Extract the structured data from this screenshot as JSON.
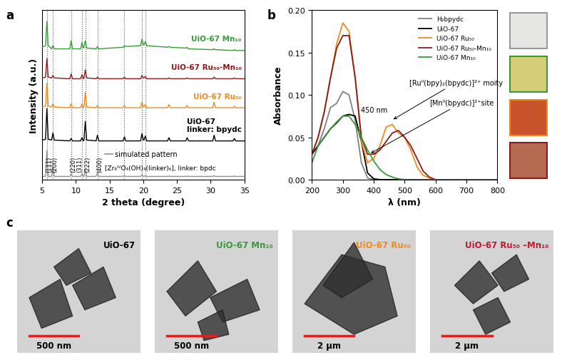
{
  "chart_data": [
    {
      "type": "line",
      "panel_label": "a",
      "x_label": "2 theta (degree)",
      "y_label": "Intensity (a.u.)",
      "xlim": [
        5,
        35
      ],
      "xticks": [
        5,
        10,
        15,
        20,
        25,
        30,
        35
      ],
      "ylim": [
        0,
        10.5
      ],
      "tick_labels": "x",
      "x": [
        5.0,
        5.5,
        5.7,
        5.9,
        6.4,
        6.6,
        6.8,
        9.1,
        9.3,
        9.5,
        10.7,
        10.9,
        11.1,
        11.2,
        11.4,
        11.6,
        13.0,
        13.2,
        13.4,
        17.0,
        17.2,
        17.4,
        19.6,
        19.8,
        20.0,
        20.1,
        20.3,
        20.5,
        23.6,
        23.8,
        24.0,
        26.3,
        26.5,
        26.7,
        30.3,
        30.5,
        30.7,
        33.3,
        33.5,
        33.7,
        35.0
      ],
      "series": [
        {
          "name": "UiO-67 Mn₁₀",
          "color": "#3a9a3a",
          "values": [
            8.2,
            8.3,
            9.8,
            8.3,
            8.1,
            8.3,
            8.1,
            8.1,
            8.6,
            8.1,
            8.1,
            8.5,
            8.15,
            8.2,
            8.6,
            8.15,
            8.1,
            8.25,
            8.1,
            8.2,
            8.3,
            8.25,
            8.3,
            8.7,
            8.35,
            8.35,
            8.55,
            8.3,
            8.2,
            8.25,
            8.2,
            8.15,
            8.2,
            8.1,
            8.05,
            8.1,
            8.05,
            8.0,
            8.05,
            8.0,
            8.0
          ]
        },
        {
          "name": "UiO-67 Ru₅₀-Mn₁₀",
          "color": "#8b1a1a",
          "values": [
            6.3,
            6.35,
            7.5,
            6.35,
            6.3,
            6.45,
            6.3,
            6.25,
            6.55,
            6.25,
            6.25,
            6.5,
            6.25,
            6.3,
            6.8,
            6.3,
            6.25,
            6.35,
            6.25,
            6.25,
            6.35,
            6.25,
            6.25,
            6.45,
            6.3,
            6.3,
            6.4,
            6.25,
            6.25,
            6.3,
            6.25,
            6.25,
            6.3,
            6.25,
            6.25,
            6.35,
            6.25,
            6.25,
            6.3,
            6.25,
            6.25
          ]
        },
        {
          "name": "UiO-67 Ru₅₀",
          "color": "#f08a1c",
          "values": [
            4.5,
            4.55,
            6.0,
            4.55,
            4.5,
            4.7,
            4.5,
            4.45,
            4.7,
            4.45,
            4.45,
            4.7,
            4.45,
            4.5,
            5.4,
            4.5,
            4.45,
            4.6,
            4.45,
            4.45,
            4.6,
            4.45,
            4.45,
            4.8,
            4.5,
            4.5,
            4.65,
            4.45,
            4.45,
            4.65,
            4.45,
            4.45,
            4.6,
            4.45,
            4.45,
            4.8,
            4.45,
            4.45,
            4.55,
            4.45,
            4.45
          ]
        },
        {
          "name": "UiO-67\nlinker: bpydc",
          "color": "#000000",
          "values": [
            2.45,
            2.5,
            4.4,
            2.5,
            2.45,
            2.9,
            2.45,
            2.4,
            2.55,
            2.4,
            2.4,
            2.6,
            2.4,
            2.45,
            3.6,
            2.45,
            2.4,
            2.75,
            2.4,
            2.4,
            2.65,
            2.4,
            2.4,
            2.85,
            2.45,
            2.45,
            2.7,
            2.4,
            2.4,
            2.6,
            2.4,
            2.4,
            2.6,
            2.4,
            2.4,
            2.75,
            2.4,
            2.4,
            2.55,
            2.4,
            2.4
          ]
        }
      ],
      "reference_pattern": {
        "name": "simulated pattern",
        "color": "#909090",
        "composition": "[Zr₆ᴵⱽO₄(OH)₄(linker)₆], linker: bpdc",
        "values": [
          0.2,
          0.2,
          1.8,
          0.2,
          0.2,
          0.8,
          0.2,
          0.2,
          0.35,
          0.2,
          0.2,
          0.35,
          0.2,
          0.2,
          0.6,
          0.2,
          0.2,
          0.4,
          0.2,
          0.2,
          0.25,
          0.2,
          0.2,
          0.3,
          0.2,
          0.2,
          0.25,
          0.2,
          0.2,
          0.22,
          0.2,
          0.2,
          0.22,
          0.2,
          0.2,
          0.25,
          0.2,
          0.2,
          0.22,
          0.2,
          0.2
        ]
      },
      "peak_labels": [
        {
          "label": "(111)",
          "x": 5.7
        },
        {
          "label": "(200)",
          "x": 6.6
        },
        {
          "label": "(220)",
          "x": 9.3
        },
        {
          "label": "(311)",
          "x": 10.9
        },
        {
          "label": "(222)",
          "x": 11.4
        },
        {
          "label": "(400)",
          "x": 13.2
        }
      ],
      "reference_lines": [
        5.7,
        6.6,
        9.3,
        10.9,
        11.4,
        13.2,
        17.2,
        19.8,
        20.3
      ]
    },
    {
      "type": "line",
      "panel_label": "b",
      "x_label": "λ (nm)",
      "y_label": "Absorbance",
      "xlim": [
        200,
        800
      ],
      "xticks": [
        200,
        300,
        400,
        500,
        600,
        700,
        800
      ],
      "ylim": [
        0,
        0.2
      ],
      "yticks": [
        {
          "value": 0,
          "label": "0.00"
        },
        {
          "value": 0.05,
          "label": "0.05"
        },
        {
          "value": 0.1,
          "label": "0.10"
        },
        {
          "value": 0.15,
          "label": "0.15"
        },
        {
          "value": 0.2,
          "label": "0.20"
        }
      ],
      "legend": "upper right",
      "x": [
        200,
        220,
        240,
        260,
        280,
        300,
        320,
        340,
        360,
        380,
        400,
        420,
        440,
        460,
        480,
        500,
        520,
        540,
        560,
        580,
        600,
        620,
        640,
        660,
        680,
        700,
        720,
        740,
        760,
        780,
        800
      ],
      "series": [
        {
          "name": "H₂bpydc",
          "color": "#808080",
          "values": [
            0.03,
            0.04,
            0.06,
            0.085,
            0.09,
            0.104,
            0.1,
            0.07,
            0.02,
            0.002,
            0,
            0,
            0,
            0,
            0,
            0,
            0,
            0,
            0,
            0,
            0,
            0,
            0,
            0,
            0,
            0,
            0,
            0,
            0,
            0,
            0
          ]
        },
        {
          "name": "UiO-67",
          "color": "#000000",
          "values": [
            0.03,
            0.04,
            0.05,
            0.06,
            0.067,
            0.075,
            0.077,
            0.075,
            0.045,
            0.008,
            0.001,
            0,
            0,
            0,
            0,
            0,
            0,
            0,
            0,
            0,
            0,
            0,
            0,
            0,
            0,
            0,
            0,
            0,
            0,
            0,
            0
          ]
        },
        {
          "name": "UiO-67 Ru₅₀",
          "color": "#f08a1c",
          "values": [
            0.03,
            0.05,
            0.08,
            0.12,
            0.16,
            0.185,
            0.175,
            0.12,
            0.045,
            0.02,
            0.025,
            0.04,
            0.062,
            0.065,
            0.055,
            0.05,
            0.035,
            0.015,
            0.005,
            0.002,
            0,
            0,
            0,
            0,
            0,
            0,
            0,
            0,
            0,
            0,
            0
          ]
        },
        {
          "name": "UiO-67 Ru₅₀-Mn₁₀",
          "color": "#8b1a1a",
          "values": [
            0.03,
            0.05,
            0.08,
            0.12,
            0.155,
            0.17,
            0.17,
            0.12,
            0.05,
            0.03,
            0.03,
            0.035,
            0.045,
            0.055,
            0.058,
            0.05,
            0.04,
            0.025,
            0.01,
            0.003,
            0,
            0,
            0,
            0,
            0,
            0,
            0,
            0,
            0,
            0,
            0
          ]
        },
        {
          "name": "UiO-67 Mn₁₀",
          "color": "#3a9a3a",
          "values": [
            0.02,
            0.04,
            0.05,
            0.06,
            0.068,
            0.075,
            0.075,
            0.065,
            0.05,
            0.035,
            0.022,
            0.012,
            0.006,
            0.003,
            0.001,
            0,
            0,
            0,
            0,
            0,
            0,
            0,
            0,
            0,
            0,
            0,
            0,
            0,
            0,
            0,
            0
          ]
        }
      ],
      "annotations": [
        "[Ruᴵᴵ(bpy)₂(bpydc)]²⁺ moity",
        "450 nm",
        "[Mnᴵᴵ(bpydc)]²⁺site"
      ]
    }
  ],
  "images": {
    "panel_label": "c",
    "items": [
      {
        "label": "UiO-67",
        "color": "#000000",
        "scale_bar": "500 nm"
      },
      {
        "label": "UiO-67 Mn₁₀",
        "color": "#3a9a3a",
        "scale_bar": "500 nm"
      },
      {
        "label": "UiO-67 Ru₅₀",
        "color": "#f08a1c",
        "scale_bar": "2 μm"
      },
      {
        "label": "UiO-67 Ru₅₀ –Mn₁₀",
        "color": "#c0182a",
        "scale_bar": "2 μm"
      }
    ]
  }
}
